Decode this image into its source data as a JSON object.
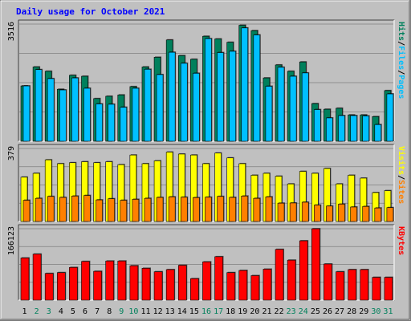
{
  "chart_data": [
    {
      "type": "bar",
      "title": "Daily usage for October 2021",
      "categories": [
        "1",
        "2",
        "3",
        "4",
        "5",
        "6",
        "7",
        "8",
        "9",
        "10",
        "11",
        "12",
        "13",
        "14",
        "15",
        "16",
        "17",
        "18",
        "19",
        "20",
        "21",
        "22",
        "23",
        "24",
        "25",
        "26",
        "27",
        "28",
        "29",
        "30",
        "31"
      ],
      "weekend_days": [
        "2",
        "3",
        "9",
        "10",
        "16",
        "17",
        "23",
        "24",
        "30",
        "31"
      ],
      "ymax_label": "3516",
      "ylim": [
        0,
        3516
      ],
      "ylabel_parts": [
        "Pages",
        "Files",
        "Hits"
      ],
      "series": [
        {
          "name": "Hits",
          "color": "#00805c",
          "values": [
            1660,
            2230,
            2100,
            1560,
            1980,
            1950,
            1280,
            1350,
            1390,
            1640,
            2230,
            2520,
            3040,
            2570,
            2460,
            3150,
            3070,
            2970,
            3480,
            3320,
            1900,
            2290,
            2100,
            2380,
            1130,
            960,
            990,
            790,
            790,
            740,
            1520
          ]
        },
        {
          "name": "Files",
          "color": "#00c0ff",
          "values": [
            1660,
            2150,
            1880,
            1540,
            1900,
            1590,
            1120,
            1110,
            1020,
            1590,
            2160,
            2000,
            2670,
            2340,
            2040,
            3080,
            2660,
            2700,
            3400,
            3190,
            1650,
            2220,
            1950,
            2050,
            950,
            700,
            770,
            770,
            760,
            500,
            1420
          ]
        },
        {
          "name": "Pages",
          "color": "#00c0ff",
          "values": [
            1660,
            2150,
            1880,
            1540,
            1900,
            1590,
            1120,
            1110,
            1020,
            1590,
            2160,
            2000,
            2670,
            2340,
            2040,
            3080,
            2660,
            2700,
            3400,
            3190,
            1650,
            2220,
            1950,
            2050,
            950,
            700,
            770,
            770,
            760,
            500,
            1420
          ]
        }
      ]
    },
    {
      "type": "bar",
      "ymax_label": "379",
      "ylim": [
        0,
        379
      ],
      "ylabel_parts": [
        "Sites",
        "Visits"
      ],
      "series": [
        {
          "name": "Visits",
          "color": "#ffff00",
          "values": [
            230,
            250,
            320,
            300,
            305,
            310,
            305,
            310,
            295,
            345,
            300,
            315,
            360,
            350,
            345,
            300,
            355,
            330,
            300,
            240,
            250,
            235,
            195,
            260,
            250,
            275,
            195,
            240,
            225,
            150,
            160
          ]
        },
        {
          "name": "Sites",
          "color": "#ff8000",
          "values": [
            110,
            120,
            130,
            125,
            132,
            135,
            112,
            118,
            110,
            115,
            120,
            125,
            128,
            126,
            124,
            126,
            130,
            125,
            132,
            120,
            128,
            95,
            96,
            100,
            85,
            80,
            90,
            75,
            78,
            70,
            72
          ]
        }
      ]
    },
    {
      "type": "bar",
      "ymax_label": "166123",
      "ylim": [
        0,
        166123
      ],
      "ylabel_parts": [
        "KBytes"
      ],
      "series": [
        {
          "name": "KBytes",
          "color": "#ff0000",
          "values": [
            98000,
            107000,
            62000,
            64000,
            76000,
            90000,
            67000,
            91000,
            91000,
            80000,
            74000,
            66000,
            71000,
            81000,
            50000,
            89000,
            101000,
            64000,
            69000,
            57000,
            72000,
            118000,
            93000,
            138000,
            166000,
            84000,
            66000,
            71000,
            71000,
            53000,
            53000
          ]
        }
      ]
    }
  ],
  "colors": {
    "background": "#c0c0c0",
    "title": "#0000ff",
    "weekday_label": "#000000",
    "weekend_label": "#00805c",
    "grid": "#808080"
  }
}
